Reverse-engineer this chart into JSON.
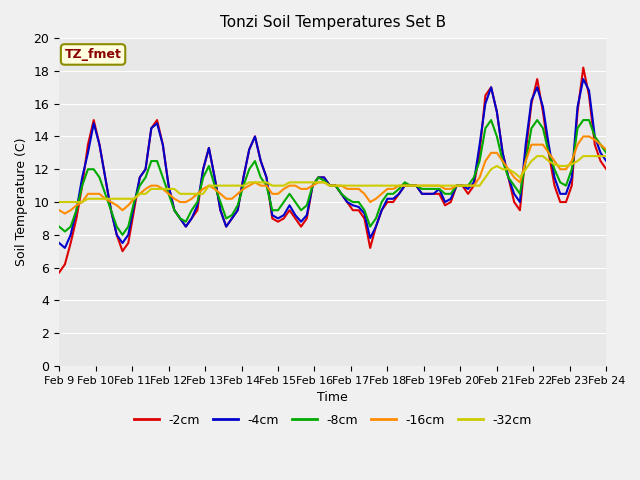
{
  "title": "Tonzi Soil Temperatures Set B",
  "xlabel": "Time",
  "ylabel": "Soil Temperature (C)",
  "ylim": [
    0,
    20
  ],
  "yticks": [
    0,
    2,
    4,
    6,
    8,
    10,
    12,
    14,
    16,
    18,
    20
  ],
  "x_labels": [
    "Feb 9",
    "Feb 10",
    "Feb 11",
    "Feb 12",
    "Feb 13",
    "Feb 14",
    "Feb 15",
    "Feb 16",
    "Feb 17",
    "Feb 18",
    "Feb 19",
    "Feb 20",
    "Feb 21",
    "Feb 22",
    "Feb 23",
    "Feb 24"
  ],
  "annotation": "TZ_fmet",
  "background_color": "#e8e8e8",
  "plot_bg_color": "#e8e8e8",
  "series": {
    "-2cm": {
      "color": "#dd0000",
      "data": [
        5.7,
        6.2,
        7.5,
        9.0,
        11.0,
        13.5,
        15.0,
        13.5,
        11.5,
        9.5,
        8.0,
        7.0,
        7.5,
        9.5,
        11.5,
        12.0,
        14.5,
        15.0,
        13.5,
        11.0,
        9.5,
        9.0,
        8.5,
        9.0,
        9.5,
        12.0,
        13.3,
        11.5,
        9.5,
        8.5,
        9.0,
        9.5,
        11.5,
        13.2,
        14.0,
        12.5,
        11.5,
        9.0,
        8.8,
        9.0,
        9.5,
        9.0,
        8.5,
        9.0,
        11.0,
        11.5,
        11.5,
        11.0,
        11.0,
        10.5,
        10.0,
        9.5,
        9.5,
        9.0,
        7.2,
        8.5,
        9.5,
        10.0,
        10.0,
        10.5,
        11.0,
        11.0,
        11.0,
        10.5,
        10.5,
        10.5,
        10.5,
        9.8,
        10.0,
        11.0,
        11.0,
        10.5,
        11.0,
        13.0,
        16.5,
        17.0,
        15.5,
        13.0,
        11.5,
        10.0,
        9.5,
        13.0,
        16.0,
        17.5,
        15.5,
        13.0,
        11.0,
        10.0,
        10.0,
        11.0,
        15.5,
        18.2,
        16.5,
        13.5,
        12.5,
        12.0
      ]
    },
    "-4cm": {
      "color": "#0000cc",
      "data": [
        7.5,
        7.2,
        8.0,
        9.5,
        11.5,
        13.0,
        14.8,
        13.5,
        11.5,
        9.5,
        8.0,
        7.5,
        8.0,
        9.8,
        11.5,
        12.0,
        14.5,
        14.8,
        13.5,
        11.0,
        9.5,
        9.0,
        8.5,
        9.0,
        9.8,
        12.0,
        13.3,
        11.5,
        9.5,
        8.5,
        9.0,
        9.5,
        11.5,
        13.2,
        14.0,
        12.5,
        11.5,
        9.2,
        9.0,
        9.2,
        9.8,
        9.2,
        8.8,
        9.2,
        11.0,
        11.5,
        11.5,
        11.0,
        11.0,
        10.5,
        10.0,
        9.8,
        9.7,
        9.3,
        7.8,
        8.5,
        9.5,
        10.2,
        10.2,
        10.5,
        11.0,
        11.0,
        11.0,
        10.5,
        10.5,
        10.5,
        10.8,
        10.0,
        10.2,
        11.0,
        11.0,
        10.8,
        11.2,
        13.5,
        16.0,
        17.0,
        15.5,
        13.0,
        11.5,
        10.5,
        10.0,
        13.5,
        16.2,
        17.0,
        15.8,
        13.5,
        11.5,
        10.5,
        10.5,
        11.5,
        15.8,
        17.5,
        16.8,
        14.0,
        13.0,
        12.5
      ]
    },
    "-8cm": {
      "color": "#00aa00",
      "data": [
        8.5,
        8.2,
        8.5,
        9.5,
        11.0,
        12.0,
        12.0,
        11.5,
        10.5,
        9.5,
        8.5,
        8.0,
        8.5,
        10.0,
        11.0,
        11.5,
        12.5,
        12.5,
        11.5,
        10.5,
        9.5,
        9.0,
        8.8,
        9.5,
        10.0,
        11.5,
        12.2,
        11.0,
        10.0,
        9.0,
        9.2,
        9.8,
        11.0,
        12.0,
        12.5,
        11.5,
        11.0,
        9.5,
        9.5,
        10.0,
        10.5,
        10.0,
        9.5,
        9.8,
        11.0,
        11.5,
        11.3,
        11.0,
        11.0,
        10.5,
        10.2,
        10.0,
        10.0,
        9.5,
        8.5,
        9.0,
        10.0,
        10.5,
        10.5,
        10.8,
        11.2,
        11.0,
        11.0,
        10.8,
        10.8,
        10.8,
        10.8,
        10.5,
        10.5,
        11.0,
        11.0,
        11.0,
        11.5,
        12.5,
        14.5,
        15.0,
        14.0,
        12.5,
        11.5,
        11.0,
        10.5,
        12.5,
        14.5,
        15.0,
        14.5,
        13.0,
        12.0,
        11.2,
        11.0,
        12.0,
        14.5,
        15.0,
        15.0,
        14.0,
        13.5,
        13.0
      ]
    },
    "-16cm": {
      "color": "#ff8c00",
      "data": [
        9.5,
        9.3,
        9.5,
        9.8,
        10.0,
        10.5,
        10.5,
        10.5,
        10.2,
        10.0,
        9.8,
        9.5,
        9.8,
        10.2,
        10.5,
        10.8,
        11.0,
        11.0,
        10.8,
        10.5,
        10.2,
        10.0,
        10.0,
        10.2,
        10.5,
        10.8,
        11.0,
        10.8,
        10.5,
        10.2,
        10.2,
        10.5,
        10.8,
        11.0,
        11.2,
        11.0,
        11.0,
        10.5,
        10.5,
        10.8,
        11.0,
        11.0,
        10.8,
        10.8,
        11.0,
        11.2,
        11.2,
        11.0,
        11.0,
        11.0,
        10.8,
        10.8,
        10.8,
        10.5,
        10.0,
        10.2,
        10.5,
        10.8,
        10.8,
        11.0,
        11.0,
        11.0,
        11.0,
        11.0,
        11.0,
        11.0,
        11.0,
        10.8,
        10.8,
        11.0,
        11.0,
        11.0,
        11.0,
        11.5,
        12.5,
        13.0,
        13.0,
        12.5,
        12.0,
        11.5,
        11.2,
        12.5,
        13.5,
        13.5,
        13.5,
        13.0,
        12.5,
        12.0,
        12.0,
        12.5,
        13.5,
        14.0,
        14.0,
        13.8,
        13.5,
        13.2
      ]
    },
    "-32cm": {
      "color": "#cccc00",
      "data": [
        10.0,
        10.0,
        10.0,
        10.0,
        10.0,
        10.2,
        10.2,
        10.2,
        10.2,
        10.2,
        10.2,
        10.2,
        10.2,
        10.2,
        10.5,
        10.5,
        10.8,
        10.8,
        10.8,
        10.8,
        10.8,
        10.5,
        10.5,
        10.5,
        10.5,
        10.5,
        11.0,
        11.0,
        11.0,
        11.0,
        11.0,
        11.0,
        11.0,
        11.2,
        11.2,
        11.2,
        11.2,
        11.0,
        11.0,
        11.0,
        11.2,
        11.2,
        11.2,
        11.2,
        11.2,
        11.2,
        11.2,
        11.0,
        11.0,
        11.0,
        11.0,
        11.0,
        11.0,
        11.0,
        11.0,
        11.0,
        11.0,
        11.0,
        11.0,
        11.0,
        11.0,
        11.0,
        11.0,
        11.0,
        11.0,
        11.0,
        11.0,
        11.0,
        11.0,
        11.0,
        11.0,
        11.0,
        11.0,
        11.0,
        11.5,
        12.0,
        12.2,
        12.0,
        12.0,
        11.8,
        11.5,
        12.0,
        12.5,
        12.8,
        12.8,
        12.5,
        12.3,
        12.2,
        12.2,
        12.3,
        12.5,
        12.8,
        12.8,
        12.8,
        12.8,
        12.8
      ]
    }
  }
}
